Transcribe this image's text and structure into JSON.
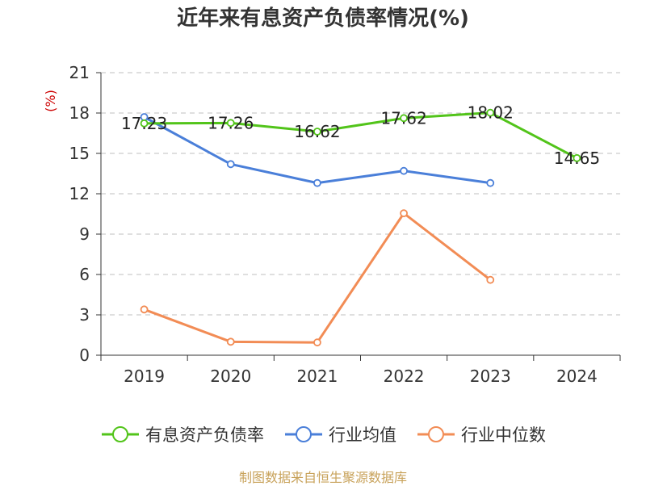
{
  "title": "近年来有息资产负债率情况(%)",
  "footer": "制图数据来自恒生聚源数据库",
  "chart_data": {
    "type": "line",
    "title": "近年来有息资产负债率情况(%)",
    "ylabel": "(%)",
    "xlabel": "",
    "categories": [
      "2019",
      "2020",
      "2021",
      "2022",
      "2023",
      "2024"
    ],
    "ylim": [
      0,
      21
    ],
    "yticks": [
      0,
      3,
      6,
      9,
      12,
      15,
      18,
      21
    ],
    "grid": true,
    "legend_position": "bottom",
    "series": [
      {
        "name": "有息资产负债率",
        "color": "#52c41a",
        "values": [
          17.23,
          17.26,
          16.62,
          17.62,
          18.02,
          14.65
        ],
        "labels": [
          "17.23",
          "17.26",
          "16.62",
          "17.62",
          "18.02",
          "14.65"
        ]
      },
      {
        "name": "行业均值",
        "color": "#4a7fd9",
        "values": [
          17.7,
          14.2,
          12.8,
          13.7,
          12.8,
          null
        ]
      },
      {
        "name": "行业中位数",
        "color": "#f28c55",
        "values": [
          3.4,
          1.0,
          0.95,
          10.55,
          5.6,
          null
        ]
      }
    ]
  }
}
